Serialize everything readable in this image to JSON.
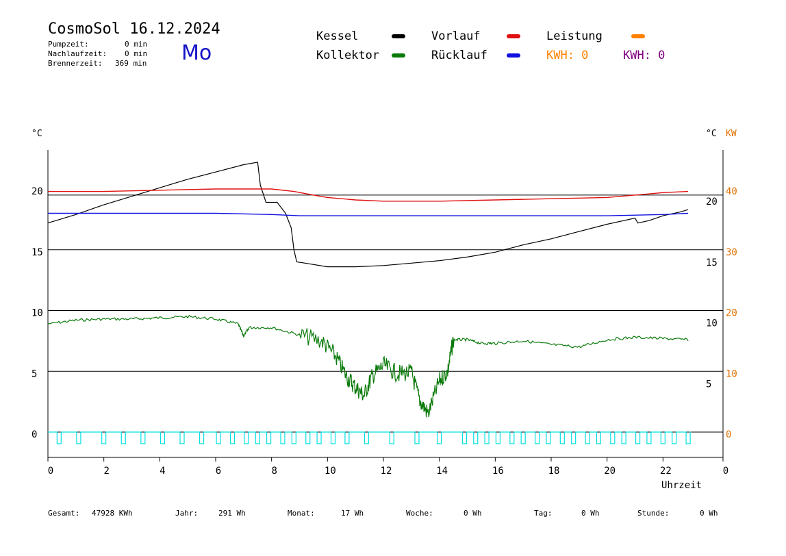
{
  "header": {
    "title": "CosmoSol 16.12.2024",
    "pumpzeit_label": "Pumpzeit:",
    "pumpzeit_value": "0 min",
    "nachlauf_label": "Nachlaufzeit:",
    "nachlauf_value": "0 min",
    "brenner_label": "Brennerzeit:",
    "brenner_value": "369 min",
    "day": "Mo"
  },
  "legend": {
    "kessel": "Kessel",
    "vorlauf": "Vorlauf",
    "leistung": "Leistung",
    "kollektor": "Kollektor",
    "ruecklauf": "Rücklauf",
    "kwh1": "KWH: 0",
    "kwh2": "KWH: 0"
  },
  "colors": {
    "kessel": "#000000",
    "vorlauf": "#e01010",
    "leistung": "#ff8000",
    "kollektor": "#0a7a0a",
    "ruecklauf": "#1010e0",
    "kwh2": "#800080",
    "pump": "#00e0e0",
    "kw_axis": "#e07000"
  },
  "axis": {
    "left_unit": "°C",
    "right_unit": "°C",
    "right_unit_kw": "KW",
    "xlabel": "Uhrzeit"
  },
  "footer": {
    "gesamt_label": "Gesamt:",
    "gesamt_value": "47928 KWh",
    "jahr_label": "Jahr:",
    "jahr_value": "291 Wh",
    "monat_label": "Monat:",
    "monat_value": "17 Wh",
    "woche_label": "Woche:",
    "woche_value": "0 Wh",
    "tag_label": "Tag:",
    "tag_value": "0 Wh",
    "stunde_label": "Stunde:",
    "stunde_value": "0 Wh"
  },
  "chart_data": {
    "type": "line",
    "xlabel": "Uhrzeit",
    "xlim": [
      0,
      24
    ],
    "x_ticks": [
      "0",
      "2",
      "4",
      "6",
      "8",
      "10",
      "12",
      "14",
      "16",
      "18",
      "20",
      "22",
      "0"
    ],
    "left_axis": {
      "unit": "°C",
      "ylim": [
        -1.5,
        23.5
      ],
      "ticks": [
        0,
        5,
        10,
        15,
        20
      ]
    },
    "right_axis_inner": {
      "unit": "°C",
      "ticks": [
        5,
        10,
        15,
        20
      ]
    },
    "right_axis_outer": {
      "unit": "KW",
      "ticks": [
        0,
        10,
        20,
        30,
        40
      ]
    },
    "grid_lines_y": [
      0,
      5,
      10,
      15,
      19.5
    ],
    "series": [
      {
        "name": "Kessel",
        "x": [
          0,
          1,
          2,
          3,
          4,
          5,
          6,
          7,
          7.5,
          7.6,
          7.8,
          8.2,
          8.5,
          8.7,
          8.8,
          8.9,
          9.2,
          10,
          11,
          12,
          13,
          14,
          15,
          16,
          17,
          18,
          19,
          20,
          21,
          21.1,
          21.5,
          22,
          22.6,
          22.9
        ],
        "y": [
          17.2,
          17.9,
          18.7,
          19.4,
          20.1,
          20.8,
          21.4,
          22.0,
          22.2,
          20.3,
          18.9,
          18.9,
          18.0,
          16.8,
          15.0,
          14.0,
          13.9,
          13.6,
          13.6,
          13.7,
          13.9,
          14.1,
          14.4,
          14.8,
          15.4,
          15.9,
          16.5,
          17.1,
          17.6,
          17.2,
          17.4,
          17.8,
          18.1,
          18.3
        ]
      },
      {
        "name": "Vorlauf",
        "x": [
          0,
          2,
          4,
          6,
          8,
          8.8,
          9.5,
          10,
          11,
          12,
          14,
          16,
          18,
          20,
          21,
          22,
          22.9
        ],
        "y": [
          19.8,
          19.8,
          19.9,
          20.0,
          20.0,
          19.8,
          19.5,
          19.3,
          19.1,
          19.0,
          19.0,
          19.1,
          19.2,
          19.3,
          19.5,
          19.7,
          19.8
        ]
      },
      {
        "name": "Rücklauf",
        "x": [
          0,
          2,
          4,
          6,
          8,
          9,
          10,
          12,
          14,
          16,
          18,
          20,
          22,
          22.9
        ],
        "y": [
          18.0,
          18.0,
          18.0,
          18.0,
          17.9,
          17.8,
          17.8,
          17.8,
          17.8,
          17.8,
          17.8,
          17.8,
          17.9,
          18.0
        ]
      },
      {
        "name": "Kollektor",
        "x": [
          0,
          1,
          2,
          3,
          4,
          5,
          6,
          6.8,
          7,
          7.2,
          8,
          9,
          9.8,
          10.3,
          10.7,
          11,
          11.3,
          11.6,
          12,
          12.5,
          13,
          13.3,
          13.6,
          14,
          14.3,
          14.5,
          15,
          15.5,
          16,
          17,
          18,
          19,
          20,
          21,
          22,
          22.9
        ],
        "y": [
          8.9,
          9.2,
          9.3,
          9.3,
          9.4,
          9.5,
          9.3,
          8.9,
          7.9,
          8.6,
          8.6,
          8.0,
          7.5,
          6.2,
          4.5,
          3.7,
          3.0,
          4.6,
          5.5,
          4.8,
          4.9,
          2.6,
          1.5,
          4.2,
          5.0,
          7.6,
          7.6,
          7.3,
          7.3,
          7.5,
          7.2,
          7.0,
          7.6,
          7.8,
          7.7,
          7.6
        ]
      },
      {
        "name": "Pumpe",
        "x": [
          0.4,
          1.1,
          2.0,
          2.7,
          3.4,
          4.1,
          4.8,
          5.5,
          6.1,
          6.6,
          7.1,
          7.5,
          7.9,
          8.4,
          8.8,
          9.3,
          9.7,
          10.2,
          10.7,
          11.4,
          12.3,
          13.2,
          14.0,
          14.9,
          15.3,
          15.7,
          16.1,
          16.6,
          17.0,
          17.5,
          17.9,
          18.4,
          18.8,
          19.3,
          19.7,
          20.2,
          20.6,
          21.1,
          21.5,
          22.0,
          22.4,
          22.9
        ],
        "y": [
          0,
          0,
          0,
          0,
          0,
          0,
          0,
          0,
          0,
          0,
          0,
          0,
          0,
          0,
          0,
          0,
          0,
          0,
          0,
          0,
          0,
          0,
          0,
          0,
          0,
          0,
          0,
          0,
          0,
          0,
          0,
          0,
          0,
          0,
          0,
          0,
          0,
          0,
          0,
          0,
          0,
          0
        ]
      }
    ]
  }
}
